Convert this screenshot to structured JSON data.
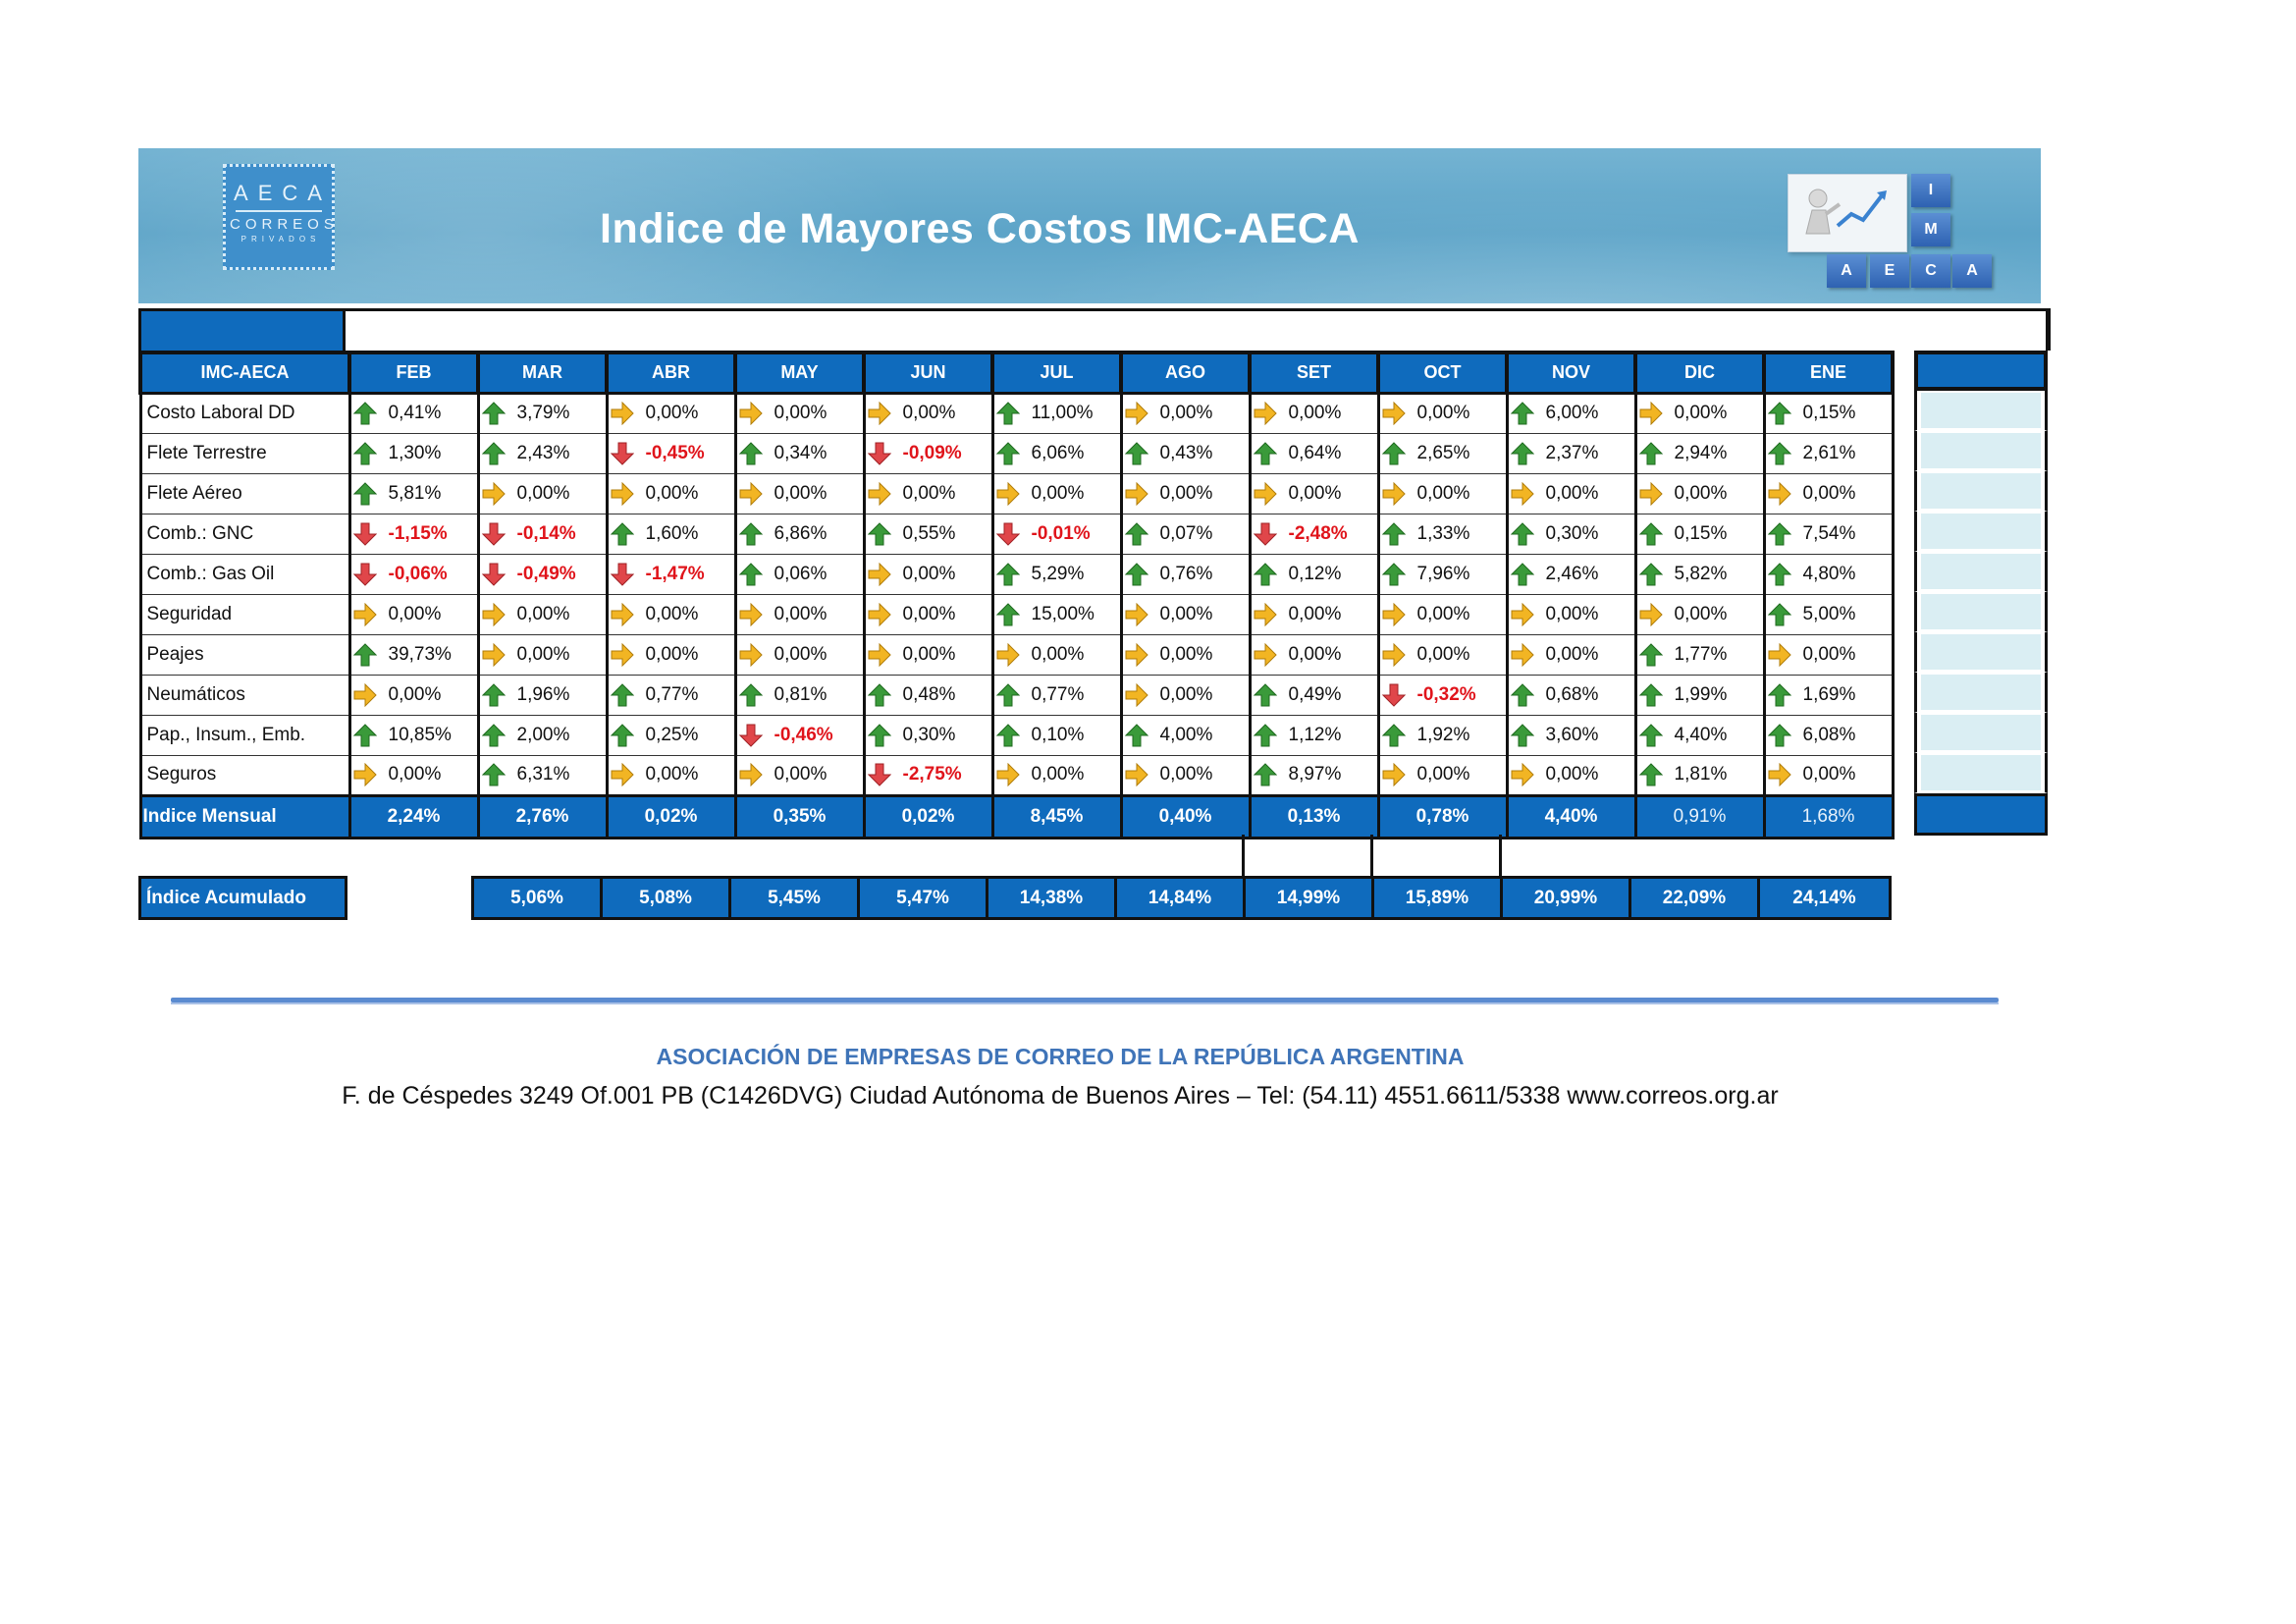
{
  "banner": {
    "title": "Indice de Mayores Costos IMC-AECA",
    "logo_left": {
      "line1": "AECA",
      "line2": "CORREOS",
      "line3": "PRIVADOS"
    },
    "logo_right": {
      "letters": [
        "I",
        "M",
        "A",
        "E",
        "C",
        "A"
      ]
    }
  },
  "table": {
    "corner_label": "IMC-AECA",
    "months": [
      "FEB",
      "MAR",
      "ABR",
      "MAY",
      "JUN",
      "JUL",
      "AGO",
      "SET",
      "OCT",
      "NOV",
      "DIC",
      "ENE"
    ],
    "rows": [
      {
        "label": "Costo Laboral DD",
        "cells": [
          {
            "v": "0,41%",
            "t": "up"
          },
          {
            "v": "3,79%",
            "t": "up"
          },
          {
            "v": "0,00%",
            "t": "flat"
          },
          {
            "v": "0,00%",
            "t": "flat"
          },
          {
            "v": "0,00%",
            "t": "flat"
          },
          {
            "v": "11,00%",
            "t": "up"
          },
          {
            "v": "0,00%",
            "t": "flat"
          },
          {
            "v": "0,00%",
            "t": "flat"
          },
          {
            "v": "0,00%",
            "t": "flat"
          },
          {
            "v": "6,00%",
            "t": "up"
          },
          {
            "v": "0,00%",
            "t": "flat"
          },
          {
            "v": "0,15%",
            "t": "up"
          }
        ]
      },
      {
        "label": "Flete Terrestre",
        "cells": [
          {
            "v": "1,30%",
            "t": "up"
          },
          {
            "v": "2,43%",
            "t": "up"
          },
          {
            "v": "-0,45%",
            "t": "down"
          },
          {
            "v": "0,34%",
            "t": "up"
          },
          {
            "v": "-0,09%",
            "t": "down"
          },
          {
            "v": "6,06%",
            "t": "up"
          },
          {
            "v": "0,43%",
            "t": "up"
          },
          {
            "v": "0,64%",
            "t": "up"
          },
          {
            "v": "2,65%",
            "t": "up"
          },
          {
            "v": "2,37%",
            "t": "up"
          },
          {
            "v": "2,94%",
            "t": "up"
          },
          {
            "v": "2,61%",
            "t": "up"
          }
        ]
      },
      {
        "label": "Flete Aéreo",
        "cells": [
          {
            "v": "5,81%",
            "t": "up"
          },
          {
            "v": "0,00%",
            "t": "flat"
          },
          {
            "v": "0,00%",
            "t": "flat"
          },
          {
            "v": "0,00%",
            "t": "flat"
          },
          {
            "v": "0,00%",
            "t": "flat"
          },
          {
            "v": "0,00%",
            "t": "flat"
          },
          {
            "v": "0,00%",
            "t": "flat"
          },
          {
            "v": "0,00%",
            "t": "flat"
          },
          {
            "v": "0,00%",
            "t": "flat"
          },
          {
            "v": "0,00%",
            "t": "flat"
          },
          {
            "v": "0,00%",
            "t": "flat"
          },
          {
            "v": "0,00%",
            "t": "flat"
          }
        ]
      },
      {
        "label": "Comb.: GNC",
        "cells": [
          {
            "v": "-1,15%",
            "t": "down"
          },
          {
            "v": "-0,14%",
            "t": "down"
          },
          {
            "v": "1,60%",
            "t": "up"
          },
          {
            "v": "6,86%",
            "t": "up"
          },
          {
            "v": "0,55%",
            "t": "up"
          },
          {
            "v": "-0,01%",
            "t": "down"
          },
          {
            "v": "0,07%",
            "t": "up"
          },
          {
            "v": "-2,48%",
            "t": "down"
          },
          {
            "v": "1,33%",
            "t": "up"
          },
          {
            "v": "0,30%",
            "t": "up"
          },
          {
            "v": "0,15%",
            "t": "up"
          },
          {
            "v": "7,54%",
            "t": "up"
          }
        ]
      },
      {
        "label": "Comb.: Gas Oil",
        "cells": [
          {
            "v": "-0,06%",
            "t": "down"
          },
          {
            "v": "-0,49%",
            "t": "down"
          },
          {
            "v": "-1,47%",
            "t": "down"
          },
          {
            "v": "0,06%",
            "t": "up"
          },
          {
            "v": "0,00%",
            "t": "flat"
          },
          {
            "v": "5,29%",
            "t": "up"
          },
          {
            "v": "0,76%",
            "t": "up"
          },
          {
            "v": "0,12%",
            "t": "up"
          },
          {
            "v": "7,96%",
            "t": "up"
          },
          {
            "v": "2,46%",
            "t": "up"
          },
          {
            "v": "5,82%",
            "t": "up"
          },
          {
            "v": "4,80%",
            "t": "up"
          }
        ]
      },
      {
        "label": "Seguridad",
        "cells": [
          {
            "v": "0,00%",
            "t": "flat"
          },
          {
            "v": "0,00%",
            "t": "flat"
          },
          {
            "v": "0,00%",
            "t": "flat"
          },
          {
            "v": "0,00%",
            "t": "flat"
          },
          {
            "v": "0,00%",
            "t": "flat"
          },
          {
            "v": "15,00%",
            "t": "up"
          },
          {
            "v": "0,00%",
            "t": "flat"
          },
          {
            "v": "0,00%",
            "t": "flat"
          },
          {
            "v": "0,00%",
            "t": "flat"
          },
          {
            "v": "0,00%",
            "t": "flat"
          },
          {
            "v": "0,00%",
            "t": "flat"
          },
          {
            "v": "5,00%",
            "t": "up"
          }
        ]
      },
      {
        "label": "Peajes",
        "cells": [
          {
            "v": "39,73%",
            "t": "up"
          },
          {
            "v": "0,00%",
            "t": "flat"
          },
          {
            "v": "0,00%",
            "t": "flat"
          },
          {
            "v": "0,00%",
            "t": "flat"
          },
          {
            "v": "0,00%",
            "t": "flat"
          },
          {
            "v": "0,00%",
            "t": "flat"
          },
          {
            "v": "0,00%",
            "t": "flat"
          },
          {
            "v": "0,00%",
            "t": "flat"
          },
          {
            "v": "0,00%",
            "t": "flat"
          },
          {
            "v": "0,00%",
            "t": "flat"
          },
          {
            "v": "1,77%",
            "t": "up"
          },
          {
            "v": "0,00%",
            "t": "flat"
          }
        ]
      },
      {
        "label": "Neumáticos",
        "cells": [
          {
            "v": "0,00%",
            "t": "flat"
          },
          {
            "v": "1,96%",
            "t": "up"
          },
          {
            "v": "0,77%",
            "t": "up"
          },
          {
            "v": "0,81%",
            "t": "up"
          },
          {
            "v": "0,48%",
            "t": "up"
          },
          {
            "v": "0,77%",
            "t": "up"
          },
          {
            "v": "0,00%",
            "t": "flat"
          },
          {
            "v": "0,49%",
            "t": "up"
          },
          {
            "v": "-0,32%",
            "t": "down"
          },
          {
            "v": "0,68%",
            "t": "up"
          },
          {
            "v": "1,99%",
            "t": "up"
          },
          {
            "v": "1,69%",
            "t": "up"
          }
        ]
      },
      {
        "label": "Pap., Insum., Emb.",
        "cells": [
          {
            "v": "10,85%",
            "t": "up"
          },
          {
            "v": "2,00%",
            "t": "up"
          },
          {
            "v": "0,25%",
            "t": "up"
          },
          {
            "v": "-0,46%",
            "t": "down"
          },
          {
            "v": "0,30%",
            "t": "up"
          },
          {
            "v": "0,10%",
            "t": "up"
          },
          {
            "v": "4,00%",
            "t": "up"
          },
          {
            "v": "1,12%",
            "t": "up"
          },
          {
            "v": "1,92%",
            "t": "up"
          },
          {
            "v": "3,60%",
            "t": "up"
          },
          {
            "v": "4,40%",
            "t": "up"
          },
          {
            "v": "6,08%",
            "t": "up"
          }
        ]
      },
      {
        "label": "Seguros",
        "cells": [
          {
            "v": "0,00%",
            "t": "flat"
          },
          {
            "v": "6,31%",
            "t": "up"
          },
          {
            "v": "0,00%",
            "t": "flat"
          },
          {
            "v": "0,00%",
            "t": "flat"
          },
          {
            "v": "-2,75%",
            "t": "down"
          },
          {
            "v": "0,00%",
            "t": "flat"
          },
          {
            "v": "0,00%",
            "t": "flat"
          },
          {
            "v": "8,97%",
            "t": "up"
          },
          {
            "v": "0,00%",
            "t": "flat"
          },
          {
            "v": "0,00%",
            "t": "flat"
          },
          {
            "v": "1,81%",
            "t": "up"
          },
          {
            "v": "0,00%",
            "t": "flat"
          }
        ]
      }
    ],
    "mensual": {
      "label": "Indice Mensual",
      "values": [
        "2,24%",
        "2,76%",
        "0,02%",
        "0,35%",
        "0,02%",
        "8,45%",
        "0,40%",
        "0,13%",
        "0,78%",
        "4,40%",
        "0,91%",
        "1,68%"
      ]
    },
    "acumulado": {
      "label": "Índice Acumulado",
      "values": [
        "5,06%",
        "5,08%",
        "5,45%",
        "5,47%",
        "14,38%",
        "14,84%",
        "14,99%",
        "15,89%",
        "20,99%",
        "22,09%",
        "24,14%"
      ]
    },
    "arrow_colors": {
      "up": "#3a9a3a",
      "down": "#e0464a",
      "flat": "#f2b523"
    }
  },
  "footer": {
    "org": "ASOCIACIÓN DE EMPRESAS DE CORREO DE LA REPÚBLICA ARGENTINA",
    "address": "F. de Céspedes 3249 Of.001 PB (C1426DVG) Ciudad Autónoma de Buenos Aires – Tel: (54.11) 4551.6611/5338 www.correos.org.ar"
  }
}
